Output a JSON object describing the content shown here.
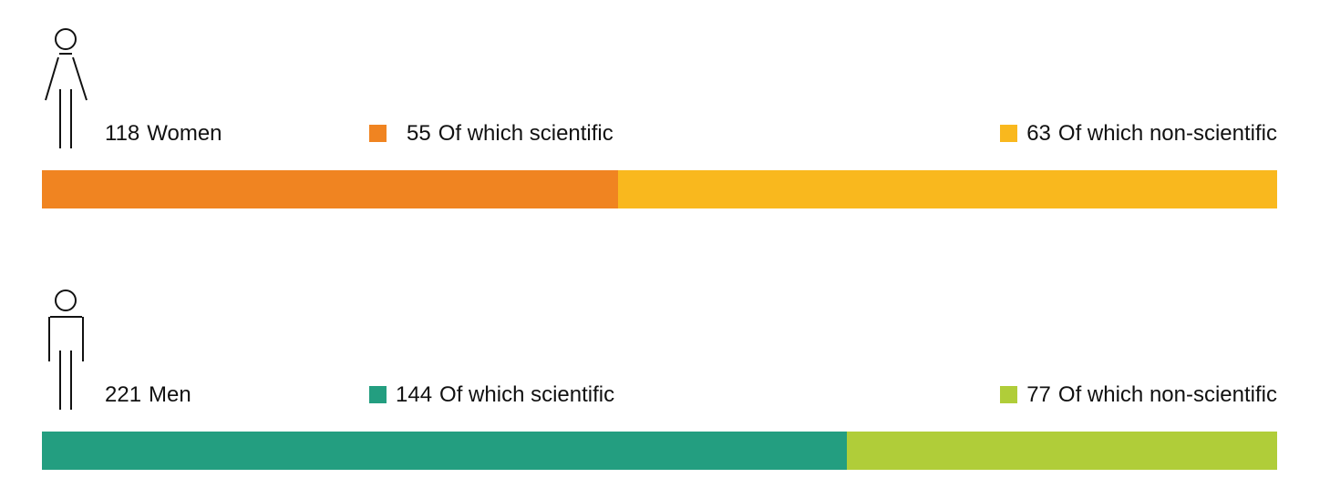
{
  "chart_data": {
    "type": "bar",
    "orientation": "horizontal-stacked",
    "categories": [
      "Women",
      "Men"
    ],
    "rows": [
      {
        "total": 118,
        "total_label": "Women",
        "segments": [
          {
            "value": 55,
            "label": "Of which scientific",
            "color": "#F08421"
          },
          {
            "value": 63,
            "label": "Of which non-scientific",
            "color": "#F9B81E"
          }
        ]
      },
      {
        "total": 221,
        "total_label": "Men",
        "segments": [
          {
            "value": 144,
            "label": "Of which scientific",
            "color": "#239E80"
          },
          {
            "value": 77,
            "label": "Of which non-scientific",
            "color": "#B0CD39"
          }
        ]
      }
    ],
    "icons": [
      "woman-icon",
      "man-icon"
    ]
  }
}
